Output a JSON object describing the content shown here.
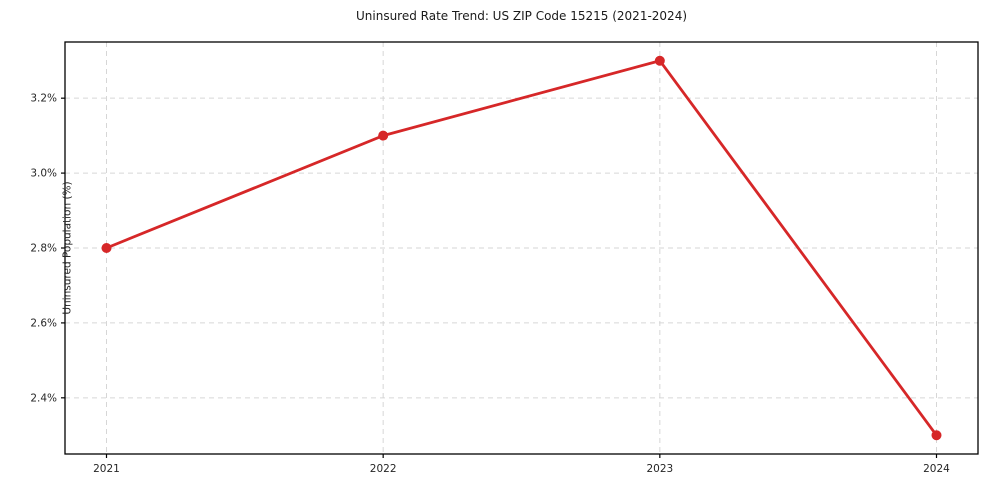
{
  "figure": {
    "title": "Uninsured Rate Trend: US ZIP Code 15215 (2021-2024)"
  },
  "chart_data": {
    "type": "line",
    "title": "Uninsured Rate Trend: US ZIP Code 15215 (2021-2024)",
    "xlabel": "",
    "ylabel": "Uninsured Population (%)",
    "x": [
      2021,
      2022,
      2023,
      2024
    ],
    "values": [
      2.8,
      3.1,
      3.3,
      2.3
    ],
    "xlim": [
      2020.85,
      2024.15
    ],
    "ylim": [
      2.25,
      3.35
    ],
    "xticks": {
      "values": [
        2021,
        2022,
        2023,
        2024
      ],
      "labels": [
        "2021",
        "2022",
        "2023",
        "2024"
      ]
    },
    "yticks": {
      "values": [
        2.4,
        2.6,
        2.8,
        3.0,
        3.2
      ],
      "labels": [
        "2.4%",
        "2.6%",
        "2.8%",
        "3.0%",
        "3.2%"
      ]
    },
    "grid": true,
    "grid_style": "dashed",
    "legend": false,
    "colors": {
      "line": "#d62728",
      "marker": "#d62728",
      "grid": "#d6d6d6",
      "border": "#000000",
      "text": "#262626"
    }
  }
}
